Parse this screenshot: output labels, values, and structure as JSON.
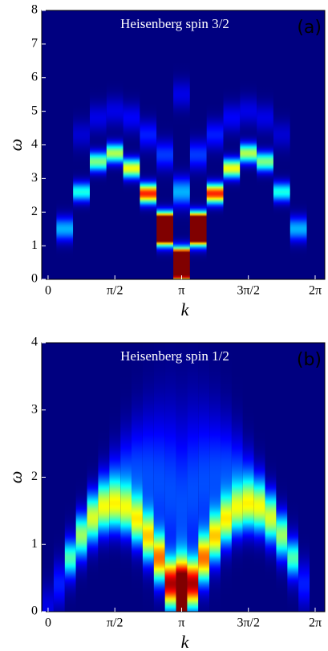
{
  "chart_data": [
    {
      "type": "heatmap",
      "title": "Heisenberg spin 3/2",
      "panel_label": "(a)",
      "xlabel": "k",
      "ylabel": "ω",
      "colormap": "jet",
      "xlim": [
        -0.15,
        6.51
      ],
      "ylim": [
        0,
        8
      ],
      "xticks": [
        0,
        {
          "value": 1.5708,
          "label": "π/2"
        },
        {
          "value": 3.1416,
          "label": "π"
        },
        {
          "value": 4.7124,
          "label": "3π/2"
        },
        {
          "value": 6.2832,
          "label": "2π"
        }
      ],
      "yticks": [
        0,
        1,
        2,
        3,
        4,
        5,
        6,
        7,
        8
      ],
      "x": [
        0.393,
        0.785,
        1.178,
        1.571,
        1.963,
        2.356,
        2.749,
        3.142,
        3.534,
        3.927,
        4.32,
        4.712,
        5.105,
        5.498,
        5.89,
        0.785,
        1.178,
        1.571,
        1.963,
        2.356,
        2.749,
        3.142,
        3.142,
        3.534,
        3.927,
        4.32,
        4.712,
        5.105,
        5.498
      ],
      "y": [
        1.5,
        2.6,
        3.5,
        3.75,
        3.3,
        2.55,
        1.5,
        0.45,
        1.5,
        2.55,
        3.3,
        3.75,
        3.5,
        2.6,
        1.5,
        4.3,
        4.8,
        5.0,
        4.8,
        4.3,
        3.7,
        2.6,
        5.5,
        3.7,
        4.3,
        4.8,
        5.0,
        4.8,
        4.3
      ],
      "values": [
        0.3,
        0.4,
        0.5,
        0.55,
        0.62,
        0.85,
        3,
        3,
        3,
        0.85,
        0.62,
        0.55,
        0.5,
        0.4,
        0.3,
        0.08,
        0.1,
        0.1,
        0.12,
        0.15,
        0.18,
        0.3,
        0.1,
        0.18,
        0.15,
        0.12,
        0.1,
        0.1,
        0.08
      ],
      "widths": [
        0.25,
        0.2,
        0.2,
        0.2,
        0.2,
        0.2,
        0.25,
        0.25,
        0.25,
        0.2,
        0.2,
        0.2,
        0.2,
        0.2,
        0.25,
        0.3,
        0.3,
        0.3,
        0.3,
        0.3,
        0.3,
        0.3,
        0.3,
        0.3,
        0.3,
        0.3,
        0.3,
        0.3,
        0.3
      ]
    },
    {
      "type": "heatmap",
      "title": "Heisenberg spin 1/2",
      "panel_label": "(b)",
      "xlabel": "k",
      "ylabel": "ω",
      "colormap": "jet",
      "xlim": [
        -0.15,
        6.51
      ],
      "ylim": [
        0,
        4
      ],
      "xticks": [
        0,
        {
          "value": 1.5708,
          "label": "π/2"
        },
        {
          "value": 3.1416,
          "label": "π"
        },
        {
          "value": 4.7124,
          "label": "3π/2"
        },
        {
          "value": 6.2832,
          "label": "2π"
        }
      ],
      "yticks": [
        0,
        1,
        2,
        3,
        4
      ],
      "x": [
        0,
        0.262,
        0.524,
        0.785,
        1.047,
        1.309,
        1.571,
        1.833,
        2.094,
        2.356,
        2.618,
        2.88,
        3.142,
        3.403,
        3.665,
        3.927,
        4.189,
        4.451,
        4.712,
        4.974,
        5.236,
        5.498,
        5.76,
        6.021,
        0.524,
        0.785,
        1.047,
        1.309,
        1.571,
        1.833,
        2.094,
        2.356,
        2.618,
        2.88,
        3.142,
        3.403,
        3.665,
        3.927,
        4.189,
        4.451,
        4.712,
        4.974,
        5.236,
        5.498,
        5.76
      ],
      "y": [
        0.05,
        0.41,
        0.79,
        1.11,
        1.36,
        1.52,
        1.57,
        1.52,
        1.36,
        1.11,
        0.79,
        0.41,
        0.2,
        0.41,
        0.79,
        1.11,
        1.36,
        1.52,
        1.57,
        1.52,
        1.36,
        1.11,
        0.79,
        0.41,
        0.8,
        1.16,
        1.47,
        1.72,
        1.9,
        2.0,
        2.04,
        2.0,
        1.91,
        1.76,
        1.57,
        1.76,
        1.91,
        2.0,
        2.04,
        2.0,
        1.9,
        1.72,
        1.47,
        1.16,
        0.8
      ],
      "values": [
        0.1,
        0.15,
        0.25,
        0.33,
        0.4,
        0.45,
        0.5,
        0.5,
        0.55,
        0.6,
        0.7,
        0.9,
        1.6,
        0.9,
        0.7,
        0.6,
        0.55,
        0.5,
        0.5,
        0.45,
        0.4,
        0.33,
        0.25,
        0.15,
        0.2,
        0.2,
        0.2,
        0.2,
        0.2,
        0.2,
        0.2,
        0.2,
        0.2,
        0.2,
        0.2,
        0.2,
        0.2,
        0.2,
        0.2,
        0.2,
        0.2,
        0.2,
        0.2,
        0.2,
        0.2
      ],
      "widths": [
        0.25,
        0.25,
        0.25,
        0.25,
        0.25,
        0.25,
        0.25,
        0.25,
        0.25,
        0.25,
        0.25,
        0.25,
        0.35,
        0.25,
        0.25,
        0.25,
        0.25,
        0.25,
        0.25,
        0.25,
        0.25,
        0.25,
        0.25,
        0.25,
        0.15,
        0.2,
        0.25,
        0.3,
        0.35,
        0.45,
        0.55,
        0.65,
        0.75,
        0.85,
        0.9,
        0.85,
        0.75,
        0.65,
        0.55,
        0.45,
        0.35,
        0.3,
        0.25,
        0.2,
        0.15
      ]
    }
  ]
}
